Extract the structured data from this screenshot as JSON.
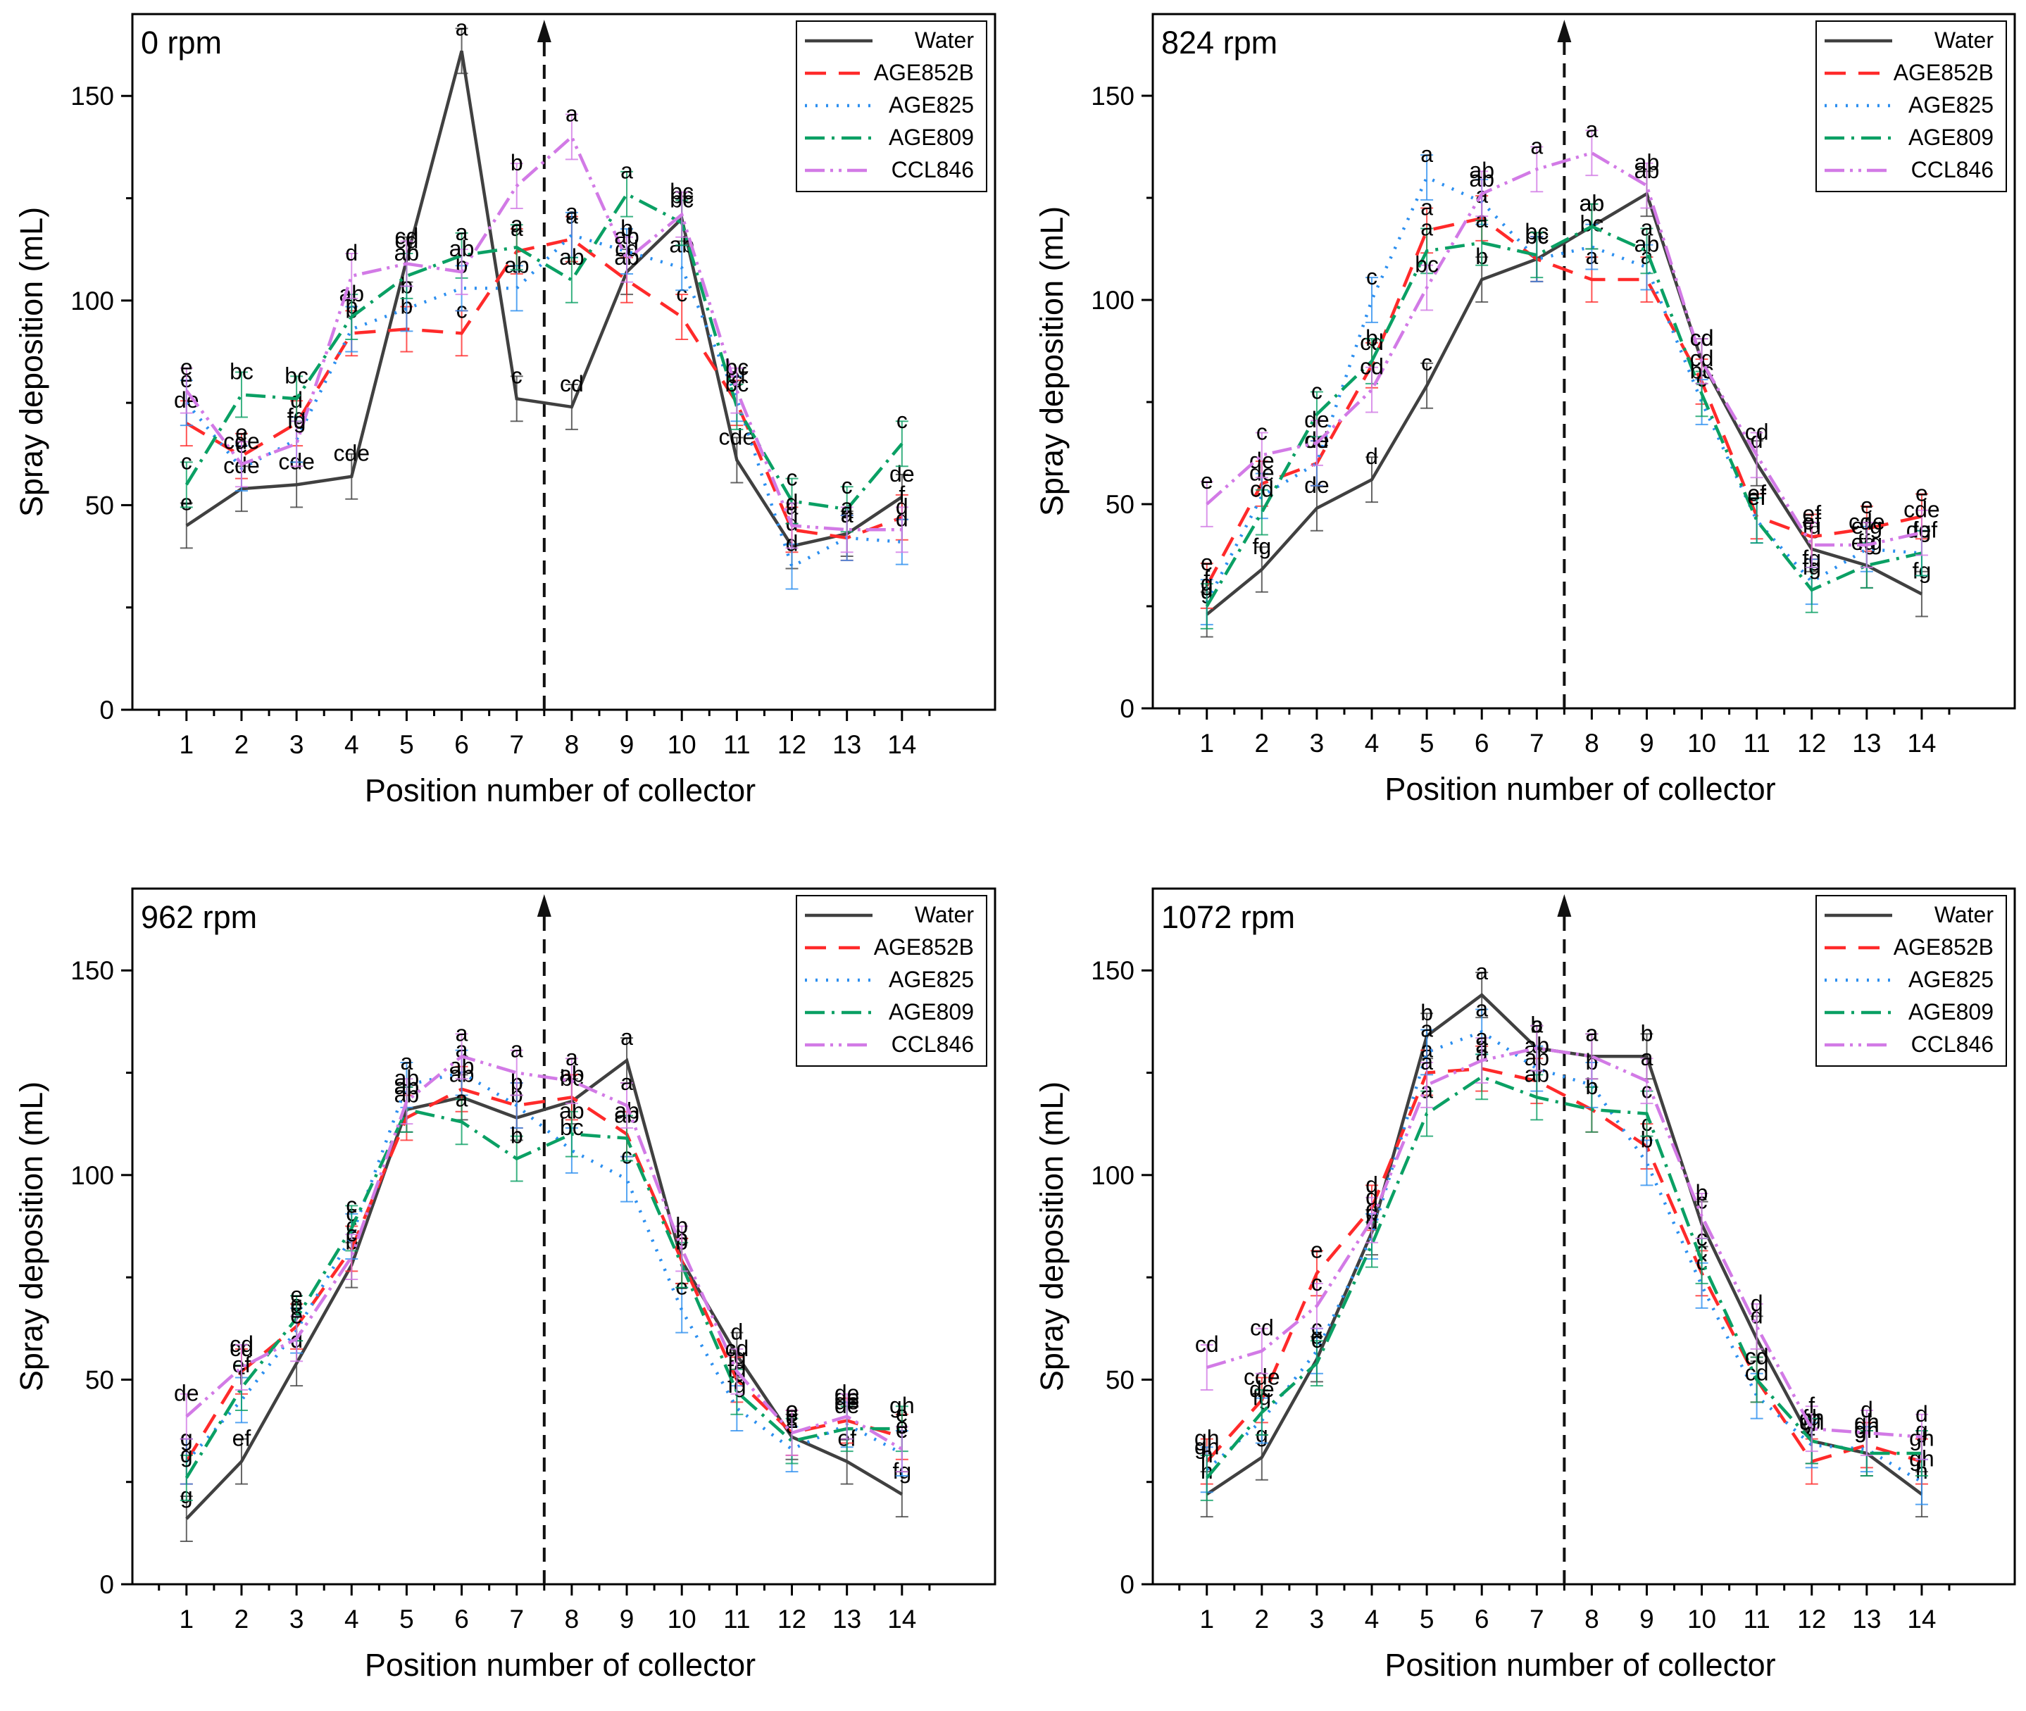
{
  "chart_data": [
    {
      "type": "line",
      "title": "0 rpm",
      "xlabel": "Position number of collector",
      "ylabel": "Spray deposition (mL)",
      "ylim": [
        0,
        170
      ],
      "yticks": [
        0,
        50,
        100,
        150
      ],
      "x": [
        1,
        2,
        3,
        4,
        5,
        6,
        7,
        8,
        9,
        10,
        11,
        12,
        13,
        14
      ],
      "divider_x": 7.5,
      "series": [
        {
          "name": "Water",
          "color": "#404040",
          "dash": "",
          "values": [
            45,
            54,
            55,
            57,
            110,
            161,
            76,
            74,
            107,
            120,
            61,
            40,
            43,
            52
          ],
          "labels": [
            "e",
            "cde",
            "cde",
            "cde",
            "cd",
            "a",
            "c",
            "cd",
            "cd",
            "bc",
            "cde",
            "d",
            "a",
            "de"
          ]
        },
        {
          "name": "AGE852B",
          "color": "#ff2a2a",
          "dash": "30,18",
          "values": [
            70,
            62,
            70,
            92,
            93,
            92,
            112,
            115,
            105,
            96,
            75,
            44,
            42,
            47
          ],
          "labels": [
            "de",
            "e",
            "d",
            "b",
            "b",
            "c",
            "a",
            "a",
            "ab",
            "c",
            "c",
            "a",
            "a",
            "f"
          ]
        },
        {
          "name": "AGE825",
          "color": "#2c8ff0",
          "dash": "3,12",
          "values": [
            75,
            59,
            66,
            93,
            98,
            103,
            103,
            116,
            112,
            108,
            76,
            35,
            42,
            41
          ],
          "labels": [
            "e",
            "e",
            "fg",
            "b",
            "b",
            "b",
            "ab",
            "a",
            "b",
            "ab",
            "ef",
            "d",
            "a",
            "d"
          ]
        },
        {
          "name": "AGE809",
          "color": "#0aa064",
          "dash": "28,10,4,10",
          "values": [
            55,
            77,
            76,
            96,
            106,
            111,
            113,
            105,
            126,
            119,
            74,
            51,
            49,
            65
          ],
          "labels": [
            "c",
            "bc",
            "bc",
            "ab",
            "ab",
            "a",
            "a",
            "ab",
            "a",
            "bc",
            "bc",
            "c",
            "c",
            "c"
          ]
        },
        {
          "name": "CCL846",
          "color": "#d27ae6",
          "dash": "28,8,4,8,4,8",
          "values": [
            78,
            60,
            65,
            106,
            109,
            107,
            128,
            140,
            110,
            121,
            78,
            45,
            44,
            44
          ],
          "labels": [
            "e",
            "cde",
            "fg",
            "d",
            "cd",
            "ab",
            "b",
            "a",
            "ab",
            "bc",
            "bc",
            "d",
            "a",
            "d"
          ]
        }
      ]
    },
    {
      "type": "line",
      "title": "824 rpm",
      "xlabel": "Position number of collector",
      "ylabel": "Spray deposition (mL)",
      "ylim": [
        0,
        170
      ],
      "yticks": [
        0,
        50,
        100,
        150
      ],
      "x": [
        1,
        2,
        3,
        4,
        5,
        6,
        7,
        8,
        9,
        10,
        11,
        12,
        13,
        14
      ],
      "divider_x": 7.5,
      "series": [
        {
          "name": "Water",
          "color": "#404040",
          "dash": "",
          "values": [
            23,
            34,
            49,
            56,
            79,
            105,
            110,
            118,
            126,
            85,
            60,
            39,
            35,
            28
          ],
          "labels": [
            "g",
            "fg",
            "de",
            "d",
            "c",
            "b",
            "bc",
            "ab",
            "ab",
            "cd",
            "d",
            "fg",
            "fg",
            "fg"
          ]
        },
        {
          "name": "AGE852B",
          "color": "#ff2a2a",
          "dash": "30,18",
          "values": [
            30,
            55,
            60,
            84,
            117,
            120,
            110,
            105,
            105,
            80,
            47,
            42,
            44,
            47
          ],
          "labels": [
            "e",
            "de",
            "cd",
            "cd",
            "a",
            "a",
            "bc",
            "a",
            "a",
            "cd",
            "ef",
            "ef",
            "e",
            "e"
          ]
        },
        {
          "name": "AGE825",
          "color": "#2c8ff0",
          "dash": "3,12",
          "values": [
            26,
            52,
            60,
            100,
            130,
            124,
            110,
            113,
            108,
            75,
            46,
            31,
            39,
            38
          ],
          "labels": [
            "f",
            "de",
            "de",
            "c",
            "a",
            "ab",
            "bc",
            "bc",
            "ab",
            "c",
            "ef",
            "fg",
            "efg",
            "fg"
          ]
        },
        {
          "name": "AGE809",
          "color": "#0aa064",
          "dash": "28,10,4,10",
          "values": [
            25,
            48,
            72,
            85,
            112,
            114,
            111,
            118,
            112,
            77,
            46,
            29,
            35,
            38
          ],
          "labels": [
            "g",
            "cd",
            "c",
            "b",
            "a",
            "a",
            "bc",
            "ab",
            "a",
            "bc",
            "ef",
            "fg",
            "efg",
            "def"
          ]
        },
        {
          "name": "CCL846",
          "color": "#d27ae6",
          "dash": "28,8,4,8,4,8",
          "values": [
            50,
            62,
            65,
            78,
            103,
            126,
            132,
            136,
            128,
            85,
            62,
            40,
            40,
            43
          ],
          "labels": [
            "e",
            "c",
            "de",
            "cd",
            "bc",
            "ab",
            "a",
            "a",
            "ab",
            "cd",
            "cd",
            "ef",
            "cde",
            "cde"
          ]
        }
      ]
    },
    {
      "type": "line",
      "title": "962 rpm",
      "xlabel": "Position number of collector",
      "ylabel": "Spray deposition (mL)",
      "ylim": [
        0,
        170
      ],
      "yticks": [
        0,
        50,
        100,
        150
      ],
      "x": [
        1,
        2,
        3,
        4,
        5,
        6,
        7,
        8,
        9,
        10,
        11,
        12,
        13,
        14
      ],
      "divider_x": 7.5,
      "series": [
        {
          "name": "Water",
          "color": "#404040",
          "dash": "",
          "values": [
            16,
            30,
            54,
            78,
            116,
            119,
            114,
            118,
            128,
            79,
            56,
            36,
            30,
            22
          ],
          "labels": [
            "g",
            "ef",
            "d",
            "b",
            "ab",
            "ab",
            "b",
            "bc",
            "a",
            "b",
            "d",
            "e",
            "ef",
            "fg"
          ]
        },
        {
          "name": "AGE852B",
          "color": "#ff2a2a",
          "dash": "30,18",
          "values": [
            30,
            52,
            63,
            82,
            114,
            121,
            117,
            119,
            110,
            79,
            50,
            37,
            40,
            36
          ],
          "labels": [
            "g",
            "cd",
            "e",
            "c",
            "ab",
            "ab",
            "b",
            "ab",
            "ab",
            "b",
            "fg",
            "e",
            "de",
            "e"
          ]
        },
        {
          "name": "AGE825",
          "color": "#2c8ff0",
          "dash": "3,12",
          "values": [
            30,
            45,
            62,
            85,
            122,
            125,
            117,
            106,
            99,
            67,
            43,
            33,
            39,
            32
          ],
          "labels": [
            "g",
            "f",
            "e",
            "c",
            "a",
            "a",
            "b",
            "bc",
            "c",
            "e",
            "fg",
            "e",
            "de",
            "e"
          ]
        },
        {
          "name": "AGE809",
          "color": "#0aa064",
          "dash": "28,10,4,10",
          "values": [
            26,
            48,
            65,
            87,
            116,
            113,
            104,
            110,
            109,
            78,
            47,
            35,
            38,
            38
          ],
          "labels": [
            "g",
            "ef",
            "e",
            "c",
            "ab",
            "a",
            "b",
            "ab",
            "ab",
            "b",
            "fg",
            "e",
            "de",
            "gh"
          ]
        },
        {
          "name": "CCL846",
          "color": "#d27ae6",
          "dash": "28,8,4,8,4,8",
          "values": [
            41,
            53,
            60,
            80,
            118,
            129,
            125,
            123,
            117,
            82,
            52,
            37,
            41,
            33
          ],
          "labels": [
            "de",
            "cd",
            "e",
            "c",
            "ab",
            "a",
            "a",
            "a",
            "a",
            "b",
            "cd",
            "e",
            "de",
            "e"
          ]
        }
      ]
    },
    {
      "type": "line",
      "title": "1072 rpm",
      "xlabel": "Position number of collector",
      "ylabel": "Spray deposition (mL)",
      "ylim": [
        0,
        170
      ],
      "yticks": [
        0,
        50,
        100,
        150
      ],
      "x": [
        1,
        2,
        3,
        4,
        5,
        6,
        7,
        8,
        9,
        10,
        11,
        12,
        13,
        14
      ],
      "divider_x": 7.5,
      "series": [
        {
          "name": "Water",
          "color": "#404040",
          "dash": "",
          "values": [
            22,
            31,
            55,
            86,
            134,
            144,
            131,
            129,
            129,
            88,
            60,
            35,
            32,
            22
          ],
          "labels": [
            "h",
            "g",
            "e",
            "d",
            "b",
            "a",
            "b",
            "a",
            "b",
            "c",
            "d",
            "gh",
            "gh",
            "h"
          ]
        },
        {
          "name": "AGE852B",
          "color": "#ff2a2a",
          "dash": "30,18",
          "values": [
            30,
            45,
            76,
            92,
            125,
            126,
            123,
            116,
            107,
            76,
            50,
            30,
            34,
            30
          ],
          "labels": [
            "gh",
            "cde",
            "e",
            "d",
            "a",
            "a",
            "ab",
            "b",
            "c",
            "c",
            "cd",
            "f",
            "gh",
            "gh"
          ]
        },
        {
          "name": "AGE825",
          "color": "#2c8ff0",
          "dash": "3,12",
          "values": [
            28,
            40,
            57,
            85,
            130,
            135,
            126,
            122,
            103,
            73,
            46,
            34,
            33,
            25
          ],
          "labels": [
            "gh",
            "fg",
            "c",
            "d",
            "a",
            "a",
            "ab",
            "b",
            "b",
            "c",
            "cd",
            "gh",
            "gh",
            "gh"
          ]
        },
        {
          "name": "AGE809",
          "color": "#0aa064",
          "dash": "28,10,4,10",
          "values": [
            26,
            42,
            54,
            83,
            115,
            124,
            119,
            116,
            115,
            79,
            50,
            35,
            32,
            32
          ],
          "labels": [
            "h",
            "de",
            "c",
            "d",
            "a",
            "a",
            "ab",
            "b",
            "c",
            "c",
            "cd",
            "fg",
            "gh",
            "g"
          ]
        },
        {
          "name": "CCL846",
          "color": "#d27ae6",
          "dash": "28,8,4,8,4,8",
          "values": [
            53,
            57,
            68,
            89,
            122,
            128,
            131,
            129,
            123,
            90,
            63,
            38,
            37,
            36
          ],
          "labels": [
            "cd",
            "cd",
            "c",
            "d",
            "a",
            "a",
            "a",
            "a",
            "a",
            "b",
            "d",
            "f",
            "d",
            "d"
          ]
        }
      ]
    }
  ]
}
